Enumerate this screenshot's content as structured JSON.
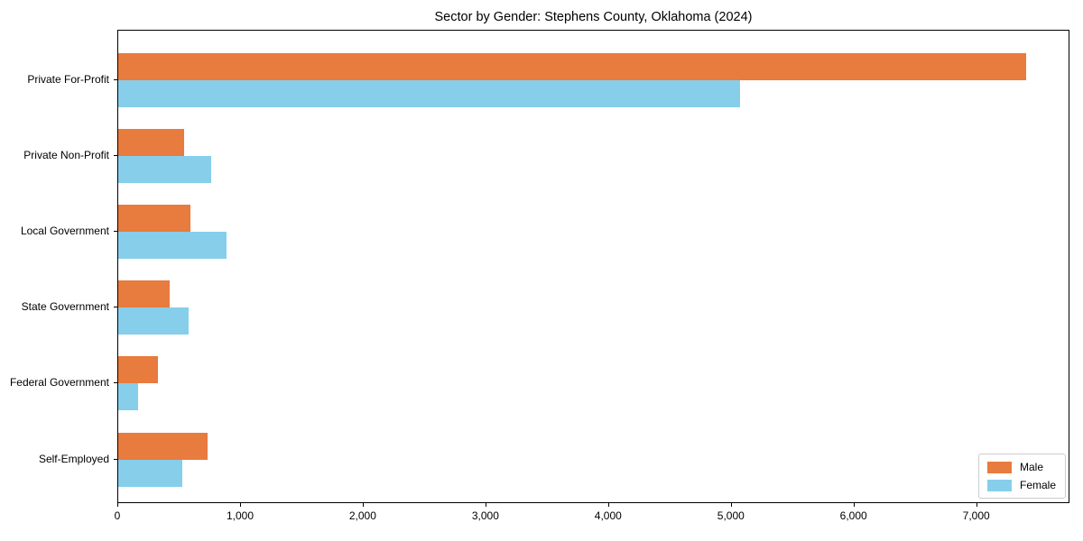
{
  "chart_data": {
    "type": "bar",
    "orientation": "horizontal",
    "title": "Sector by Gender: Stephens County, Oklahoma (2024)",
    "categories": [
      "Private For-Profit",
      "Private Non-Profit",
      "Local Government",
      "State Government",
      "Federal Government",
      "Self-Employed"
    ],
    "series": [
      {
        "name": "Male",
        "color": "#E87B3E",
        "values": [
          7400,
          540,
          590,
          420,
          320,
          730
        ]
      },
      {
        "name": "Female",
        "color": "#87CEEB",
        "values": [
          5070,
          760,
          880,
          570,
          160,
          520
        ]
      }
    ],
    "xlim": [
      0,
      7760
    ],
    "x_ticks": [
      0,
      1000,
      2000,
      3000,
      4000,
      5000,
      6000,
      7000
    ],
    "x_tick_labels": [
      "0",
      "1,000",
      "2,000",
      "3,000",
      "4,000",
      "5,000",
      "6,000",
      "7,000"
    ],
    "xlabel": "",
    "ylabel": "",
    "grid": false,
    "legend_position": "lower right",
    "axis_color": "#000000",
    "background_color": "#ffffff"
  }
}
